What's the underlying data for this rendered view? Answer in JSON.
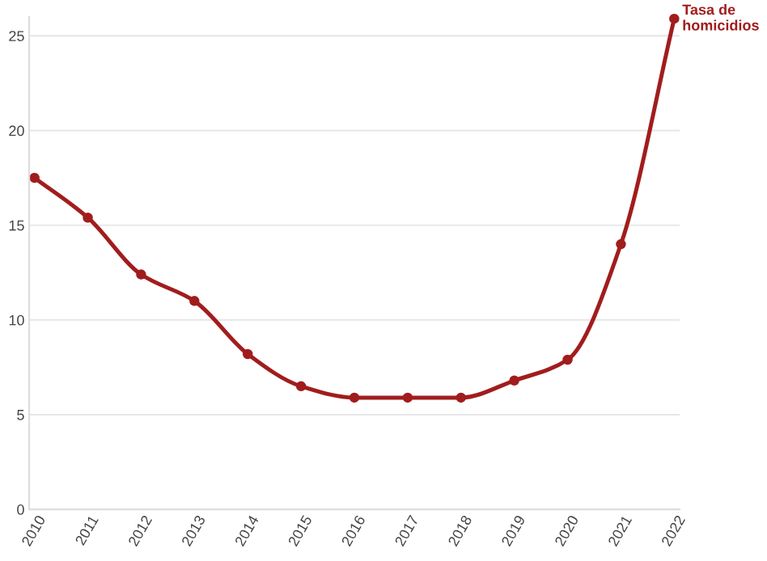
{
  "chart_data": {
    "type": "line",
    "categories": [
      "2010",
      "2011",
      "2012",
      "2013",
      "2014",
      "2015",
      "2016",
      "2017",
      "2018",
      "2019",
      "2020",
      "2021",
      "2022"
    ],
    "series": [
      {
        "name": "Tasa de\nhomicidios",
        "color": "#a11d1d",
        "values": [
          17.5,
          15.4,
          12.4,
          11.0,
          8.2,
          6.5,
          5.9,
          5.9,
          5.9,
          6.8,
          7.9,
          14.0,
          25.9
        ]
      }
    ],
    "ylim": [
      0,
      26
    ],
    "yticks": [
      0,
      5,
      10,
      15,
      20,
      25
    ],
    "grid": "y",
    "marker": "circle",
    "line_style": "solid",
    "legend": false
  }
}
